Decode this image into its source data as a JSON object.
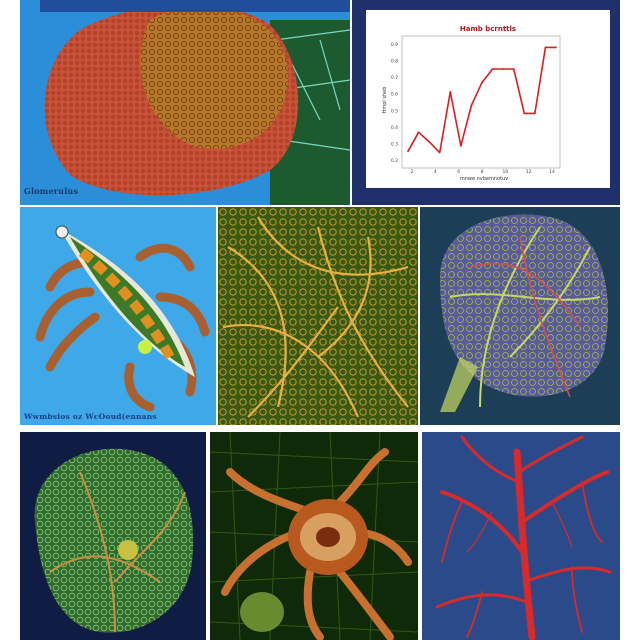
{
  "panels": [
    {
      "id": "kidney-tissue",
      "caption": "Glomerulus"
    },
    {
      "id": "line-chart"
    },
    {
      "id": "organism",
      "caption": "Wwmbsios oz WcOoud(ennans"
    },
    {
      "id": "golden-network"
    },
    {
      "id": "vein-network-a"
    },
    {
      "id": "green-network"
    },
    {
      "id": "golden-cell"
    },
    {
      "id": "red-vessels"
    }
  ],
  "chart_data": {
    "type": "line",
    "title": "Hamb bcrnttls",
    "xlabel": "mnwe nvbemnotuv",
    "ylabel": "Hmpl sheb",
    "yticks": [
      "0.9",
      "0.8",
      "0.7",
      "0.6",
      "0.5",
      "0.4",
      "0.3",
      "0.2"
    ],
    "xticks": [
      "2",
      "4",
      "6",
      "8",
      "10",
      "12",
      "14"
    ],
    "x": [
      1,
      2,
      3,
      4,
      5,
      6,
      7,
      8,
      9,
      10,
      11,
      12,
      13,
      14,
      15
    ],
    "y": [
      0.21,
      0.35,
      0.28,
      0.2,
      0.65,
      0.25,
      0.55,
      0.72,
      0.82,
      0.82,
      0.82,
      0.49,
      0.49,
      0.98,
      0.98
    ],
    "ylim": [
      0.1,
      1.05
    ],
    "series_color": "#d81e1e",
    "grid": false
  }
}
